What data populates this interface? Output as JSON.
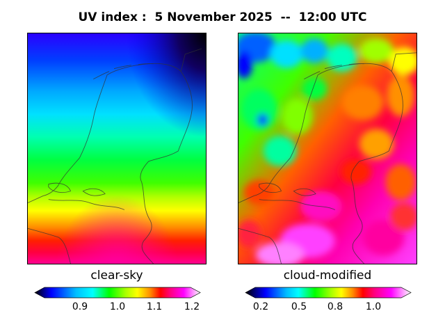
{
  "title": "UV index :  5 November 2025  --  12:00 UTC",
  "panels": [
    {
      "label": "clear-sky",
      "colorbar_ticks": [
        "0.9",
        "1.0",
        "1.1",
        "1.2"
      ]
    },
    {
      "label": "cloud-modified",
      "colorbar_ticks": [
        "0.2",
        "0.5",
        "0.8",
        "1.0"
      ]
    }
  ],
  "colors": {
    "scale": [
      "#000000",
      "#0000ff",
      "#00bfff",
      "#00ffff",
      "#00ff00",
      "#aaff00",
      "#ffff00",
      "#ff8800",
      "#ff0000",
      "#ff0080",
      "#ff00ff",
      "#ffffff"
    ]
  }
}
